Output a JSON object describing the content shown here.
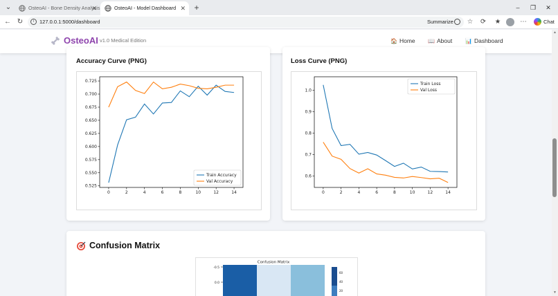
{
  "browser": {
    "tabs": [
      {
        "title": "OsteoAI - Bone Density Analysis",
        "active": false
      },
      {
        "title": "OsteoAI - Model Dashboard",
        "active": true
      }
    ],
    "url": "127.0.0.1:5000/dashboard",
    "summarize_label": "Summarize",
    "chat_label": "Chat"
  },
  "app": {
    "brand": "OsteoAI",
    "edition": "v1.0 Medical Edition",
    "nav": [
      {
        "icon": "home-icon",
        "label": "Home"
      },
      {
        "icon": "book-icon",
        "label": "About"
      },
      {
        "icon": "chart-icon",
        "label": "Dashboard"
      }
    ]
  },
  "cards": {
    "accuracy_title": "Accuracy Curve (PNG)",
    "loss_title": "Loss Curve (PNG)",
    "confusion_title": "Confusion Matrix"
  },
  "colors": {
    "brand": "#8e44ad",
    "train": "#1f77b4",
    "val": "#ff7f0e"
  },
  "chart_data": [
    {
      "type": "line",
      "x": [
        0,
        1,
        2,
        3,
        4,
        5,
        6,
        7,
        8,
        9,
        10,
        11,
        12,
        13,
        14
      ],
      "series": [
        {
          "name": "Train Accuracy",
          "values": [
            0.531,
            0.603,
            0.651,
            0.656,
            0.681,
            0.662,
            0.683,
            0.684,
            0.706,
            0.695,
            0.715,
            0.698,
            0.717,
            0.705,
            0.703
          ]
        },
        {
          "name": "Val Accuracy",
          "values": [
            0.675,
            0.714,
            0.723,
            0.707,
            0.701,
            0.723,
            0.71,
            0.713,
            0.719,
            0.716,
            0.711,
            0.71,
            0.713,
            0.717,
            0.717
          ]
        }
      ],
      "xticks": [
        0,
        2,
        4,
        6,
        8,
        10,
        12,
        14
      ],
      "yticks": [
        0.525,
        0.55,
        0.575,
        0.6,
        0.625,
        0.65,
        0.675,
        0.7,
        0.725
      ],
      "ytick_labels": [
        "0.525",
        "0.550",
        "0.575",
        "0.600",
        "0.625",
        "0.650",
        "0.675",
        "0.700",
        "0.725"
      ],
      "xlim": [
        -1,
        15
      ],
      "ylim": [
        0.522,
        0.733
      ],
      "legend": "lower-right",
      "grid": false
    },
    {
      "type": "line",
      "x": [
        0,
        1,
        2,
        3,
        4,
        5,
        6,
        7,
        8,
        9,
        10,
        11,
        12,
        13,
        14
      ],
      "series": [
        {
          "name": "Train Loss",
          "values": [
            1.025,
            0.822,
            0.742,
            0.748,
            0.702,
            0.71,
            0.698,
            0.672,
            0.645,
            0.66,
            0.633,
            0.642,
            0.622,
            0.621,
            0.619
          ]
        },
        {
          "name": "Val Loss",
          "values": [
            0.758,
            0.693,
            0.678,
            0.635,
            0.614,
            0.634,
            0.61,
            0.604,
            0.594,
            0.591,
            0.598,
            0.593,
            0.587,
            0.59,
            0.57
          ]
        }
      ],
      "xticks": [
        0,
        2,
        4,
        6,
        8,
        10,
        12,
        14
      ],
      "yticks": [
        0.6,
        0.7,
        0.8,
        0.9,
        1.0
      ],
      "ytick_labels": [
        "0.6",
        "0.7",
        "0.8",
        "0.9",
        "1.0"
      ],
      "xlim": [
        -1,
        15
      ],
      "ylim": [
        0.547,
        1.063
      ],
      "legend": "upper-right",
      "grid": false
    },
    {
      "type": "heatmap",
      "title": "Confusion Matrix",
      "yticks": [
        "-0.5",
        "0.0"
      ],
      "colorbar_ticks": [
        "60",
        "40",
        "20"
      ],
      "visible_cells": [
        "#1a5ea6",
        "#d9e7f4",
        "#8abfdc"
      ]
    }
  ]
}
